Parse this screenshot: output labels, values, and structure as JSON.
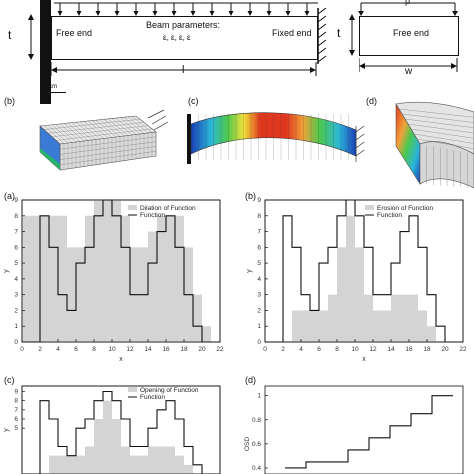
{
  "schematic": {
    "left_beam": {
      "t_label": "t",
      "free_end": "Free end",
      "params_title": "Beam parameters:",
      "params_symbols": "ε, ε, ε, ε",
      "fixed_end": "Fixed end",
      "length_label": "l",
      "scale_bar": "1 cm"
    },
    "right_beam": {
      "p_label": "p",
      "t_label": "t",
      "free_end": "Free end",
      "width_label": "w"
    },
    "panels": {
      "b": "(b)",
      "c": "(c)",
      "d": "(d)"
    }
  },
  "charts_meta": {
    "a": {
      "label": "(a)",
      "legend": [
        "Dilation of Function",
        "Function"
      ]
    },
    "b": {
      "label": "(b)",
      "legend": [
        "Erosion of Function",
        "Function"
      ]
    },
    "c": {
      "label": "(c)",
      "legend": [
        "Opening of Function",
        "Function"
      ]
    },
    "d": {
      "label": "(d)",
      "ylabel": "OSD"
    }
  },
  "chart_data": [
    {
      "type": "area",
      "label": "(a)",
      "xlabel": "x",
      "ylabel": "y",
      "xlim": [
        0,
        22
      ],
      "ylim": [
        0,
        9
      ],
      "xticks": [
        0,
        2,
        4,
        6,
        8,
        10,
        12,
        14,
        16,
        18,
        20,
        22
      ],
      "yticks": [
        0,
        1,
        2,
        3,
        4,
        5,
        6,
        7,
        8,
        9
      ],
      "series": [
        {
          "name": "Dilation of Function",
          "style": "filled-step",
          "x": [
            0,
            1,
            2,
            3,
            4,
            5,
            6,
            7,
            8,
            9,
            10,
            11,
            12,
            13,
            14,
            15,
            16,
            17,
            18,
            19,
            20,
            21
          ],
          "values": [
            8,
            8,
            8,
            8,
            8,
            6,
            6,
            8,
            9,
            9,
            9,
            8,
            6,
            6,
            7,
            8,
            8,
            8,
            6,
            3,
            1,
            0
          ]
        },
        {
          "name": "Function",
          "style": "step",
          "x": [
            0,
            1,
            2,
            3,
            4,
            5,
            6,
            7,
            8,
            9,
            10,
            11,
            12,
            13,
            14,
            15,
            16,
            17,
            18,
            19,
            20,
            21
          ],
          "values": [
            0,
            0,
            8,
            6,
            3,
            2,
            5,
            6,
            8,
            9,
            8,
            6,
            3,
            3,
            5,
            7,
            8,
            6,
            3,
            1,
            0,
            0
          ]
        }
      ]
    },
    {
      "type": "area",
      "label": "(b)",
      "xlabel": "x",
      "ylabel": "y",
      "xlim": [
        0,
        22
      ],
      "ylim": [
        0,
        9
      ],
      "xticks": [
        0,
        2,
        4,
        6,
        8,
        10,
        12,
        14,
        16,
        18,
        20,
        22
      ],
      "yticks": [
        0,
        1,
        2,
        3,
        4,
        5,
        6,
        7,
        8,
        9
      ],
      "series": [
        {
          "name": "Erosion of Function",
          "style": "filled-step",
          "x": [
            0,
            1,
            2,
            3,
            4,
            5,
            6,
            7,
            8,
            9,
            10,
            11,
            12,
            13,
            14,
            15,
            16,
            17,
            18,
            19,
            20,
            21
          ],
          "values": [
            0,
            0,
            0,
            2,
            2,
            2,
            2,
            3,
            6,
            8,
            6,
            3,
            2,
            2,
            3,
            3,
            3,
            2,
            1,
            0,
            0,
            0
          ]
        },
        {
          "name": "Function",
          "style": "step",
          "x": [
            0,
            1,
            2,
            3,
            4,
            5,
            6,
            7,
            8,
            9,
            10,
            11,
            12,
            13,
            14,
            15,
            16,
            17,
            18,
            19,
            20,
            21
          ],
          "values": [
            0,
            0,
            8,
            6,
            3,
            2,
            5,
            6,
            8,
            9,
            8,
            6,
            3,
            3,
            5,
            7,
            8,
            6,
            3,
            1,
            0,
            0
          ]
        }
      ]
    },
    {
      "type": "area",
      "label": "(c)",
      "ylabel": "y",
      "xlim": [
        0,
        22
      ],
      "ylim": [
        0,
        9
      ],
      "yticks": [
        5,
        6,
        7,
        8,
        9
      ],
      "series": [
        {
          "name": "Opening of Function",
          "style": "filled-step",
          "x": [
            0,
            1,
            2,
            3,
            4,
            5,
            6,
            7,
            8,
            9,
            10,
            11,
            12,
            13,
            14,
            15,
            16,
            17,
            18,
            19,
            20,
            21
          ],
          "values": [
            0,
            0,
            0,
            2,
            2,
            2,
            2,
            3,
            6,
            8,
            6,
            3,
            2,
            2,
            3,
            3,
            3,
            2,
            1,
            0,
            0,
            0
          ]
        },
        {
          "name": "Function",
          "style": "step",
          "x": [
            0,
            1,
            2,
            3,
            4,
            5,
            6,
            7,
            8,
            9,
            10,
            11,
            12,
            13,
            14,
            15,
            16,
            17,
            18,
            19,
            20,
            21
          ],
          "values": [
            0,
            0,
            8,
            6,
            3,
            2,
            5,
            6,
            8,
            9,
            8,
            6,
            3,
            3,
            5,
            7,
            8,
            6,
            3,
            1,
            0,
            0
          ]
        }
      ]
    },
    {
      "type": "line",
      "label": "(d)",
      "ylabel": "OSD",
      "ylim": [
        0.4,
        1.05
      ],
      "yticks": [
        0.4,
        0.6,
        0.8,
        1
      ],
      "series": [
        {
          "style": "step",
          "x": [
            0,
            1,
            2,
            3,
            4,
            5,
            6,
            7,
            8
          ],
          "values": [
            0.4,
            0.45,
            0.45,
            0.55,
            0.65,
            0.75,
            0.85,
            1.0,
            1.0
          ]
        }
      ]
    }
  ]
}
